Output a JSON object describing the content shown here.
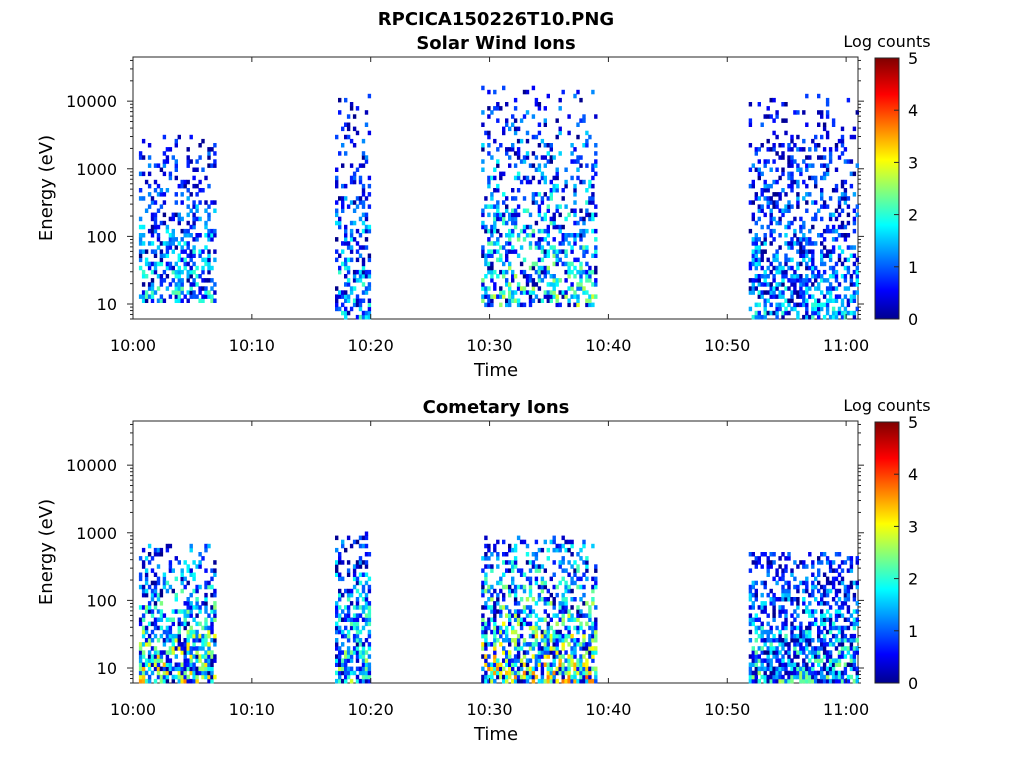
{
  "figure_title": "RPCICA150226T10.PNG",
  "chart_data": [
    {
      "type": "heatmap",
      "title": "Solar Wind Ions",
      "xlabel": "Time",
      "ylabel": "Energy (eV)",
      "x_ticks": [
        "10:00",
        "10:10",
        "10:20",
        "10:30",
        "10:40",
        "10:50",
        "11:00"
      ],
      "x_range": [
        "10:00",
        "11:01"
      ],
      "y_scale": "log",
      "y_ticks": [
        "10",
        "100",
        "1000",
        "10000"
      ],
      "y_range": [
        6,
        45000
      ],
      "colorbar": {
        "label": "Log counts",
        "range": [
          0,
          5
        ],
        "ticks": [
          "0",
          "1",
          "2",
          "3",
          "4",
          "5"
        ],
        "colormap": "jet"
      },
      "grid": false,
      "clusters": [
        {
          "time_start": "10:00.5",
          "time_end": "10:06.8",
          "energy_min": 10,
          "energy_max": 3000,
          "peak_log_counts": 2.5
        },
        {
          "time_start": "10:17.0",
          "time_end": "10:19.8",
          "energy_min": 6,
          "energy_max": 13000,
          "peak_log_counts": 2.4
        },
        {
          "time_start": "10:29.3",
          "time_end": "10:39.0",
          "energy_min": 8,
          "energy_max": 15000,
          "peak_log_counts": 3.0
        },
        {
          "time_start": "10:51.8",
          "time_end": "11:01.0",
          "energy_min": 6,
          "energy_max": 12000,
          "peak_log_counts": 2.2
        }
      ]
    },
    {
      "type": "heatmap",
      "title": "Cometary Ions",
      "xlabel": "Time",
      "ylabel": "Energy (eV)",
      "x_ticks": [
        "10:00",
        "10:10",
        "10:20",
        "10:30",
        "10:40",
        "10:50",
        "11:00"
      ],
      "x_range": [
        "10:00",
        "11:01"
      ],
      "y_scale": "log",
      "y_ticks": [
        "10",
        "100",
        "1000",
        "10000"
      ],
      "y_range": [
        6,
        45000
      ],
      "colorbar": {
        "label": "Log counts",
        "range": [
          0,
          5
        ],
        "ticks": [
          "0",
          "1",
          "2",
          "3",
          "4",
          "5"
        ],
        "colormap": "jet"
      },
      "grid": false,
      "clusters": [
        {
          "time_start": "10:00.5",
          "time_end": "10:06.8",
          "energy_min": 6,
          "energy_max": 600,
          "peak_log_counts": 3.8
        },
        {
          "time_start": "10:17.0",
          "time_end": "10:19.8",
          "energy_min": 6,
          "energy_max": 950,
          "peak_log_counts": 3.2
        },
        {
          "time_start": "10:29.3",
          "time_end": "10:39.0",
          "energy_min": 6,
          "energy_max": 850,
          "peak_log_counts": 4.0
        },
        {
          "time_start": "10:51.8",
          "time_end": "11:01.0",
          "energy_min": 6,
          "energy_max": 500,
          "peak_log_counts": 2.8
        }
      ]
    }
  ]
}
